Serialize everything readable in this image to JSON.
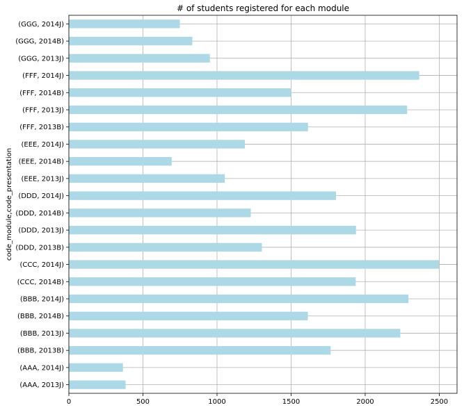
{
  "chart_data": {
    "type": "bar",
    "orientation": "horizontal",
    "title": "# of students registered for each module",
    "ylabel": "code_module,code_presentation",
    "xlabel": "",
    "xlim": [
      0,
      2620
    ],
    "xticks": [
      0,
      500,
      1000,
      1500,
      2000,
      2500
    ],
    "grid": true,
    "bar_color": "#add8e6",
    "categories": [
      "(AAA, 2013J)",
      "(AAA, 2014J)",
      "(BBB, 2013B)",
      "(BBB, 2013J)",
      "(BBB, 2014B)",
      "(BBB, 2014J)",
      "(CCC, 2014B)",
      "(CCC, 2014J)",
      "(DDD, 2013B)",
      "(DDD, 2013J)",
      "(DDD, 2014B)",
      "(DDD, 2014J)",
      "(EEE, 2013J)",
      "(EEE, 2014B)",
      "(EEE, 2014J)",
      "(FFF, 2013B)",
      "(FFF, 2013J)",
      "(FFF, 2014B)",
      "(FFF, 2014J)",
      "(GGG, 2013J)",
      "(GGG, 2014B)",
      "(GGG, 2014J)"
    ],
    "values": [
      383,
      365,
      1767,
      2237,
      1613,
      2292,
      1936,
      2498,
      1303,
      1938,
      1228,
      1803,
      1052,
      694,
      1188,
      1614,
      2283,
      1500,
      2365,
      952,
      833,
      749
    ]
  }
}
